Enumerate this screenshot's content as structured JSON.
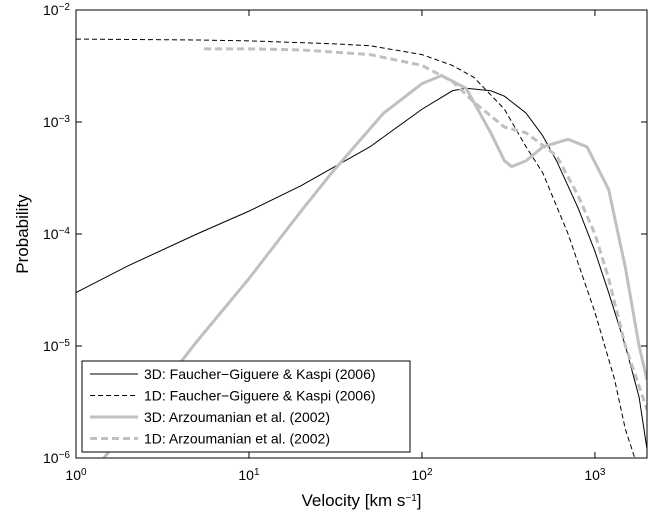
{
  "chart_data": {
    "type": "line",
    "xlabel": "Velocity [km s−1]",
    "ylabel": "Probability",
    "xscale": "log",
    "yscale": "log",
    "xlim": [
      1,
      2000
    ],
    "ylim": [
      1e-06,
      0.01
    ],
    "xticks": [
      {
        "value": 1,
        "label": "100"
      },
      {
        "value": 10,
        "label": "101"
      },
      {
        "value": 100,
        "label": "102"
      },
      {
        "value": 1000,
        "label": "103"
      }
    ],
    "yticks": [
      {
        "value": 1e-06,
        "label": "10−6"
      },
      {
        "value": 1e-05,
        "label": "10−5"
      },
      {
        "value": 0.0001,
        "label": "10−4"
      },
      {
        "value": 0.001,
        "label": "10−3"
      },
      {
        "value": 0.01,
        "label": "10−2"
      }
    ],
    "legend": "lower left",
    "series": [
      {
        "name": "3D: Faucher−Giguere & Kaspi (2006)",
        "color": "#000000",
        "dash": "solid",
        "width": 1,
        "x": [
          1,
          2,
          5,
          10,
          20,
          50,
          100,
          150,
          180,
          250,
          300,
          400,
          500,
          600,
          800,
          1000,
          1200,
          1500,
          1800,
          2000
        ],
        "values": [
          3e-05,
          5.2e-05,
          0.0001,
          0.00016,
          0.00027,
          0.0006,
          0.0013,
          0.0019,
          0.002,
          0.0019,
          0.0017,
          0.0012,
          0.00075,
          0.00045,
          0.00017,
          7e-05,
          3e-05,
          1e-05,
          3.5e-06,
          1.2e-06
        ]
      },
      {
        "name": "1D: Faucher−Giguere & Kaspi (2006)",
        "color": "#000000",
        "dash": "dashed",
        "width": 1,
        "x": [
          1,
          5,
          10,
          30,
          50,
          100,
          150,
          200,
          300,
          400,
          500,
          700,
          1000,
          1300,
          1500,
          1700
        ],
        "values": [
          0.0055,
          0.0054,
          0.0053,
          0.005,
          0.0048,
          0.004,
          0.0032,
          0.0025,
          0.0013,
          0.0006,
          0.00035,
          0.0001,
          2e-05,
          5e-06,
          1.8e-06,
          1e-06
        ]
      },
      {
        "name": "3D: Arzoumanian et al. (2002)",
        "color": "#c0c0c0",
        "dash": "solid",
        "width": 3,
        "x": [
          1.45,
          2,
          3,
          5,
          10,
          20,
          30,
          60,
          100,
          130,
          180,
          250,
          300,
          330,
          400,
          500,
          700,
          900,
          1200,
          1500,
          1800,
          2000
        ],
        "values": [
          1e-06,
          1.9e-06,
          4e-06,
          1.1e-05,
          4e-05,
          0.00016,
          0.00035,
          0.0012,
          0.0022,
          0.0026,
          0.002,
          0.0008,
          0.00045,
          0.0004,
          0.00045,
          0.0006,
          0.0007,
          0.0006,
          0.00025,
          5e-05,
          1e-05,
          5e-06
        ]
      },
      {
        "name": "1D: Arzoumanian et al. (2002)",
        "color": "#c0c0c0",
        "dash": "dashed",
        "width": 3,
        "x": [
          5.5,
          10,
          20,
          50,
          100,
          150,
          200,
          300,
          400,
          600,
          800,
          1000,
          1200,
          1500,
          2000
        ],
        "values": [
          0.0045,
          0.0045,
          0.0044,
          0.004,
          0.0032,
          0.0023,
          0.0015,
          0.0009,
          0.0008,
          0.0005,
          0.00022,
          0.0001,
          4e-05,
          1e-05,
          2.7e-06
        ]
      }
    ]
  }
}
